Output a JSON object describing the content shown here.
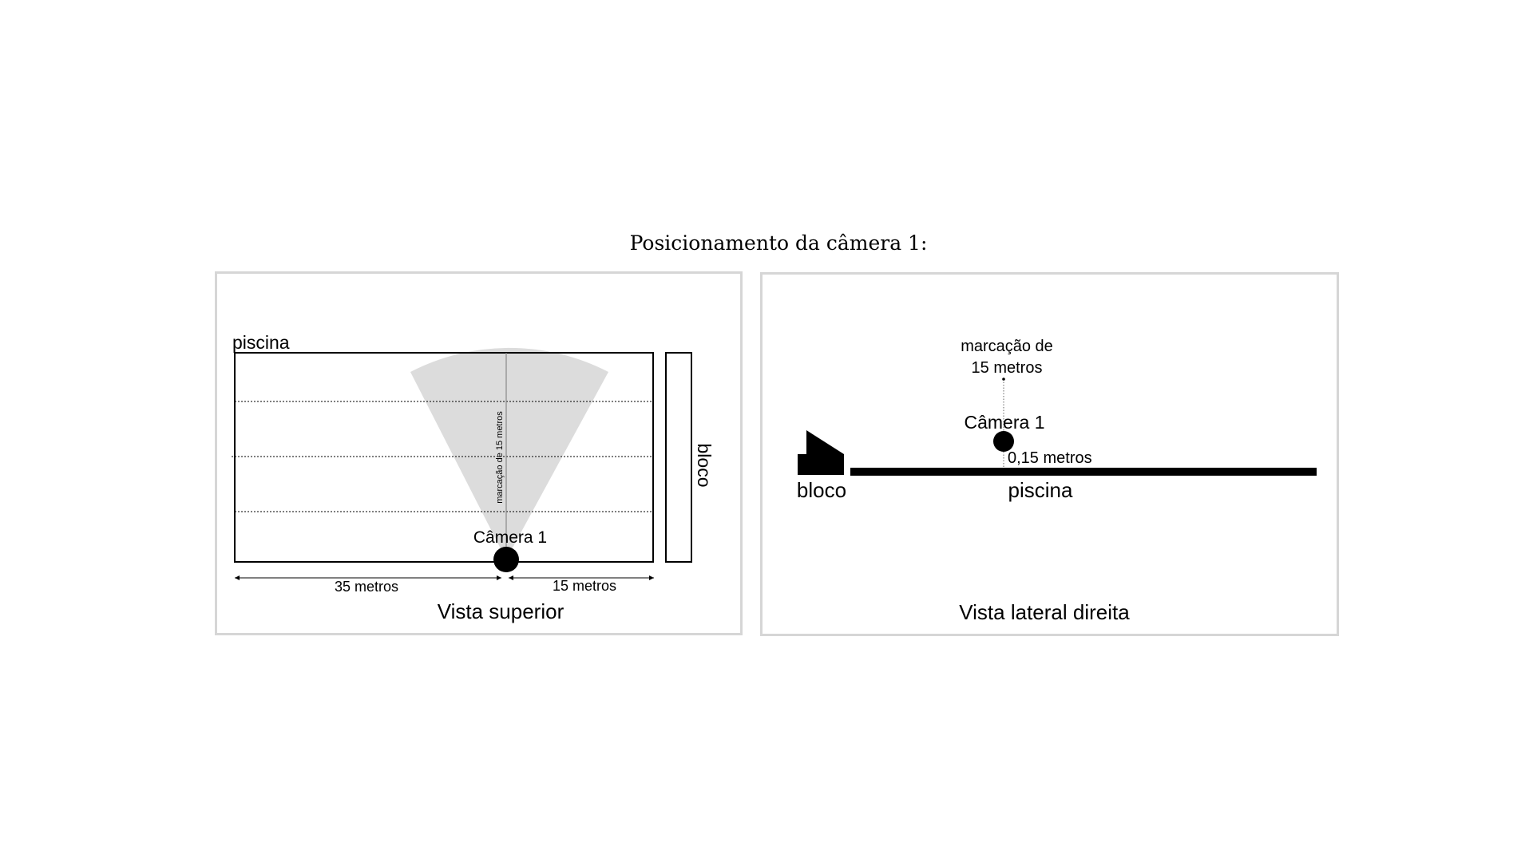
{
  "title": "Posicionamento da câmera 1:",
  "top_view": {
    "pool_label": "piscina",
    "block_label": "bloco",
    "marker_label": "marcação de 15 metros",
    "camera_label": "Câmera 1",
    "dim_left": "35 metros",
    "dim_right": "15 metros",
    "caption": "Vista superior",
    "fov_color": "#dcdcdc"
  },
  "side_view": {
    "marker_line1": "marcação de",
    "marker_line2": "15 metros",
    "camera_label": "Câmera 1",
    "height_label": "0,15 metros",
    "block_label": "bloco",
    "pool_label": "piscina",
    "caption": "Vista lateral direita"
  }
}
